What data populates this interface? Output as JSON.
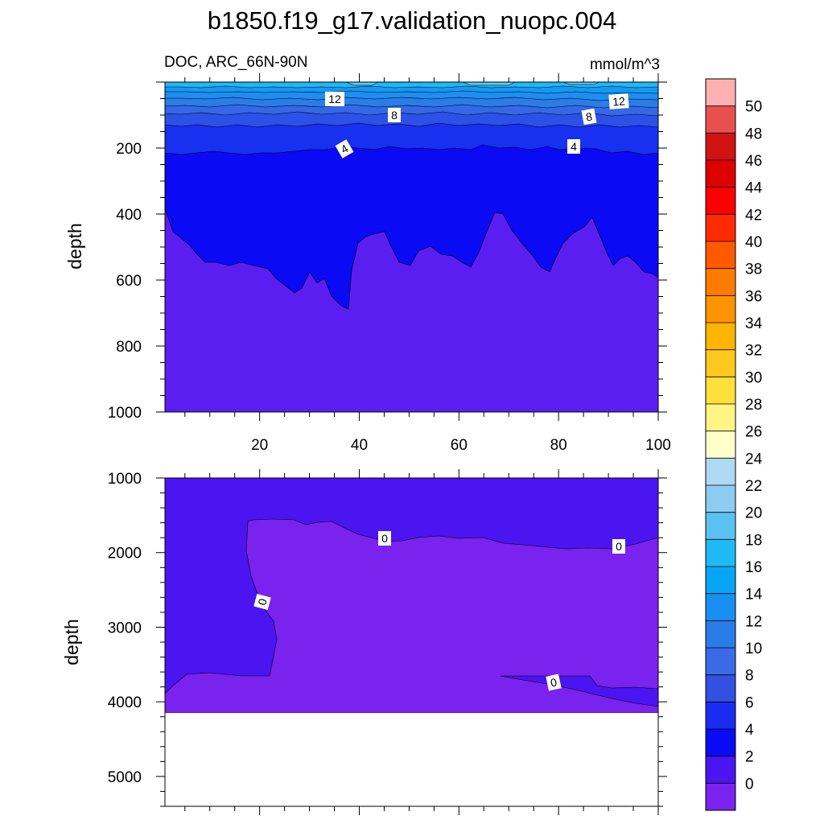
{
  "title": "b1850.f19_g17.validation_nuopc.004",
  "chart_data": {
    "type": "contour",
    "title": "b1850.f19_g17.validation_nuopc.004",
    "variable": "DOC, ARC_66N-90N",
    "units": "mmol/m^3",
    "xlabel": "",
    "ylabel": "depth",
    "x_ticks": [
      "20",
      "40",
      "60",
      "80",
      "100"
    ],
    "upper_panel": {
      "ylim": [
        1000,
        0
      ],
      "y_ticks": [
        "200",
        "400",
        "600",
        "800",
        "1000"
      ],
      "contour_labels": [
        "12",
        "12",
        "8",
        "8",
        "4",
        "4"
      ],
      "fill_levels": [
        {
          "from": 18,
          "to": 20,
          "color": "#5ac7f5"
        },
        {
          "from": 16,
          "to": 18,
          "color": "#1fb8f5"
        },
        {
          "from": 14,
          "to": 16,
          "color": "#1299f6"
        },
        {
          "from": 12,
          "to": 14,
          "color": "#1e8ef0"
        },
        {
          "from": 10,
          "to": 12,
          "color": "#2a7ce8"
        },
        {
          "from": 8,
          "to": 10,
          "color": "#3468e6"
        },
        {
          "from": 6,
          "to": 8,
          "color": "#2c50e8"
        },
        {
          "from": 4,
          "to": 6,
          "color": "#1830f0"
        },
        {
          "from": 2,
          "to": 4,
          "color": "#0a0af5"
        },
        {
          "from": 0,
          "to": 2,
          "color": "#5a1ff0"
        }
      ]
    },
    "lower_panel": {
      "ylim": [
        5400,
        1000
      ],
      "y_ticks": [
        "1000",
        "2000",
        "3000",
        "4000",
        "5000"
      ],
      "contour_labels": [
        "0",
        "0",
        "0",
        "0"
      ],
      "fill_levels": [
        {
          "from": 0,
          "to": 2,
          "color": "#4a15f0"
        },
        {
          "from": -2,
          "to": 0,
          "color": "#7a22ee"
        }
      ]
    },
    "colorbar": {
      "labels": [
        "50",
        "48",
        "46",
        "44",
        "42",
        "40",
        "38",
        "36",
        "34",
        "32",
        "30",
        "28",
        "26",
        "24",
        "22",
        "20",
        "18",
        "16",
        "14",
        "12",
        "10",
        "8",
        "6",
        "4",
        "2",
        "0"
      ],
      "colors": [
        "#ffb0b0",
        "#e85050",
        "#d01414",
        "#dc0000",
        "#ff0000",
        "#ff2b00",
        "#ff5a00",
        "#ff7b00",
        "#ff9400",
        "#ffb400",
        "#ffc81e",
        "#ffe03a",
        "#fff585",
        "#ffffcc",
        "#aed9f2",
        "#8ecbf0",
        "#5ac2f2",
        "#1fbaf5",
        "#06a6f5",
        "#1890f2",
        "#2a7ce8",
        "#3a6ae6",
        "#3250e2",
        "#1a2cf0",
        "#0a0af5",
        "#4a15f0",
        "#7a22ee"
      ]
    }
  }
}
